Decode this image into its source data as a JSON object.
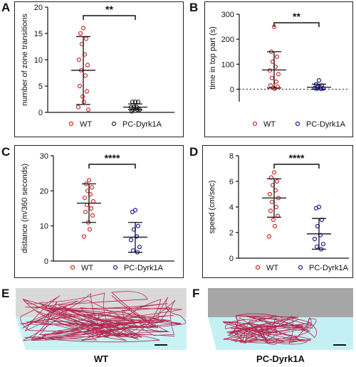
{
  "panels": {
    "A": {
      "letter": "A"
    },
    "B": {
      "letter": "B"
    },
    "C": {
      "letter": "C"
    },
    "D": {
      "letter": "D"
    },
    "E": {
      "letter": "E",
      "caption": "WT"
    },
    "F": {
      "letter": "F",
      "caption": "PC-Dyrk1A"
    }
  },
  "colors": {
    "wt": "#d42a2a",
    "dyrk_A": "#222222",
    "dyrk": "#1a1aa6",
    "arena_top": "#d9d9d9",
    "arena_bottom_E": "#c9f2f5",
    "arena_top_F": "#a6a6a6",
    "arena_bottom_F": "#c4f0f3",
    "track": "#b5284f"
  },
  "chart_data": [
    {
      "id": "A",
      "type": "scatter",
      "ylabel": "number of zone transitions",
      "ylim": [
        0,
        20
      ],
      "yticks": [
        0,
        5,
        10,
        15,
        20
      ],
      "groups": [
        {
          "name": "WT",
          "points": [
            16,
            15,
            14,
            13,
            11,
            10,
            9,
            8,
            7,
            5,
            4,
            3,
            2,
            1,
            0.5
          ],
          "mean": 8,
          "sd_low": 1.5,
          "sd_high": 14.4
        },
        {
          "name": "PC-Dyrk1A",
          "points": [
            2,
            2,
            2,
            1,
            1,
            1,
            0.5,
            0.5,
            0.5,
            0.2
          ],
          "mean": 1,
          "sd_low": 0.5,
          "sd_high": 1.6
        }
      ],
      "significance": "**",
      "legend": [
        "WT",
        "PC-Dyrk1A"
      ]
    },
    {
      "id": "B",
      "type": "scatter",
      "ylabel": "time in top part (s)",
      "ylim": [
        -50,
        300
      ],
      "yticks": [
        0,
        100,
        200,
        300
      ],
      "dotted_zero": true,
      "groups": [
        {
          "name": "WT",
          "points": [
            250,
            150,
            130,
            110,
            90,
            75,
            60,
            45,
            30,
            15,
            10,
            5,
            2
          ],
          "mean": 77,
          "sd_low": 5,
          "sd_high": 150
        },
        {
          "name": "PC-Dyrk1A",
          "points": [
            35,
            20,
            15,
            10,
            8,
            5,
            3,
            2,
            1
          ],
          "mean": 8,
          "sd_low": 0,
          "sd_high": 20
        }
      ],
      "significance": "**",
      "legend": [
        "WT",
        "PC-Dyrk1A"
      ]
    },
    {
      "id": "C",
      "type": "scatter",
      "ylabel": "distance (m/360 seconds)",
      "ylim": [
        0,
        30
      ],
      "yticks": [
        0,
        10,
        20,
        30
      ],
      "groups": [
        {
          "name": "WT",
          "points": [
            23,
            22,
            21,
            20,
            19,
            18,
            17,
            16,
            15,
            14,
            13,
            11,
            9,
            7
          ],
          "mean": 16.5,
          "sd_low": 11,
          "sd_high": 22
        },
        {
          "name": "PC-Dyrk1A",
          "points": [
            14.5,
            14,
            10,
            9,
            7,
            6,
            4,
            3,
            2.5
          ],
          "mean": 6.8,
          "sd_low": 2.5,
          "sd_high": 11
        }
      ],
      "significance": "****",
      "legend": [
        "WT",
        "PC-Dyrk1A"
      ]
    },
    {
      "id": "D",
      "type": "scatter",
      "ylabel": "speed (cm/sec)",
      "ylim": [
        0,
        8
      ],
      "yticks": [
        0,
        2,
        4,
        6,
        8
      ],
      "groups": [
        {
          "name": "WT",
          "points": [
            6.7,
            6.3,
            6.0,
            5.7,
            5.3,
            5.0,
            4.7,
            4.4,
            4.0,
            3.7,
            3.3,
            3.0,
            2.5,
            1.7
          ],
          "mean": 4.7,
          "sd_low": 3.2,
          "sd_high": 6.2
        },
        {
          "name": "PC-Dyrk1A",
          "points": [
            4.0,
            3.9,
            3.0,
            2.5,
            1.8,
            1.5,
            1.1,
            0.9,
            0.7
          ],
          "mean": 1.9,
          "sd_low": 0.7,
          "sd_high": 3.1
        }
      ],
      "significance": "****",
      "legend": [
        "WT",
        "PC-Dyrk1A"
      ]
    }
  ]
}
